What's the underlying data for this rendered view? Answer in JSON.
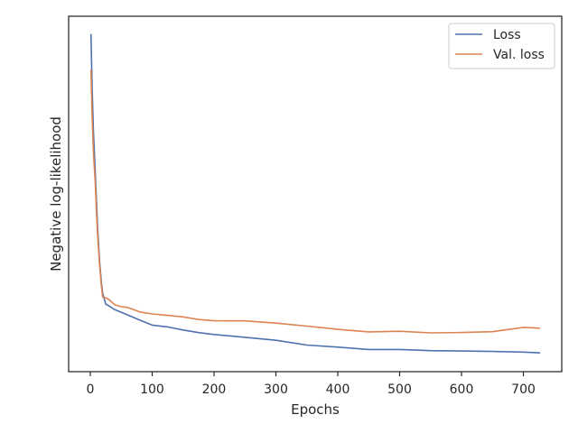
{
  "chart_data": {
    "type": "line",
    "title": "",
    "xlabel": "Epochs",
    "ylabel": "Negative log-likelihood",
    "xlim": [
      -35,
      762
    ],
    "ylim": [
      0,
      1
    ],
    "x_ticks": [
      0,
      100,
      200,
      300,
      400,
      500,
      600,
      700
    ],
    "y_ticks_shown": false,
    "grid": false,
    "legend_position": "top-right",
    "series": [
      {
        "name": "Loss",
        "color": "#4c72b0",
        "x": [
          1,
          3,
          5,
          8,
          10,
          12,
          15,
          18,
          20,
          25,
          30,
          40,
          50,
          60,
          80,
          100,
          125,
          150,
          175,
          200,
          250,
          300,
          350,
          400,
          450,
          500,
          550,
          600,
          650,
          700,
          727
        ],
        "y": [
          0.95,
          0.8,
          0.68,
          0.56,
          0.48,
          0.4,
          0.31,
          0.25,
          0.22,
          0.19,
          0.185,
          0.175,
          0.168,
          0.16,
          0.145,
          0.132,
          0.125,
          0.117,
          0.11,
          0.105,
          0.096,
          0.088,
          0.076,
          0.069,
          0.063,
          0.062,
          0.06,
          0.058,
          0.057,
          0.056,
          0.054
        ]
      },
      {
        "name": "Val. loss",
        "color": "#dd8452",
        "x": [
          1,
          3,
          5,
          8,
          10,
          12,
          15,
          18,
          20,
          25,
          30,
          40,
          50,
          60,
          80,
          100,
          125,
          150,
          175,
          200,
          250,
          300,
          330,
          350,
          400,
          450,
          500,
          550,
          600,
          650,
          700,
          727
        ],
        "y": [
          0.85,
          0.72,
          0.62,
          0.53,
          0.45,
          0.38,
          0.3,
          0.24,
          0.21,
          0.205,
          0.2,
          0.19,
          0.183,
          0.178,
          0.17,
          0.163,
          0.158,
          0.153,
          0.148,
          0.145,
          0.14,
          0.137,
          0.133,
          0.128,
          0.12,
          0.114,
          0.112,
          0.11,
          0.111,
          0.115,
          0.122,
          0.124
        ]
      }
    ]
  }
}
